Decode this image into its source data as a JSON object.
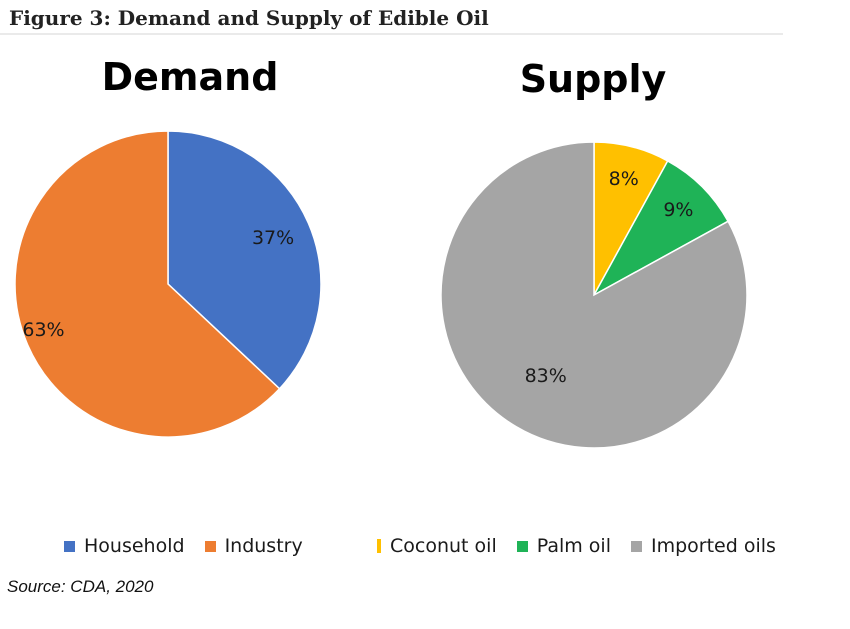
{
  "figure": {
    "title": "Figure 3: Demand and Supply of Edible Oil",
    "source": "Source: CDA, 2020"
  },
  "chart_data": [
    {
      "type": "pie",
      "title": "Demand",
      "categories": [
        "Household",
        "Industry"
      ],
      "values": [
        37,
        63
      ],
      "labels": [
        "37%",
        "63%"
      ],
      "colors": [
        "#4472C4",
        "#ED7D31"
      ],
      "legend_position": "bottom"
    },
    {
      "type": "pie",
      "title": "Supply",
      "categories": [
        "Coconut oil",
        "Palm oil",
        "Imported oils"
      ],
      "values": [
        8,
        9,
        83
      ],
      "labels": [
        "8%",
        "9%",
        "83%"
      ],
      "colors": [
        "#FFC000",
        "#1FB357",
        "#A5A5A5"
      ],
      "legend_position": "bottom"
    }
  ]
}
